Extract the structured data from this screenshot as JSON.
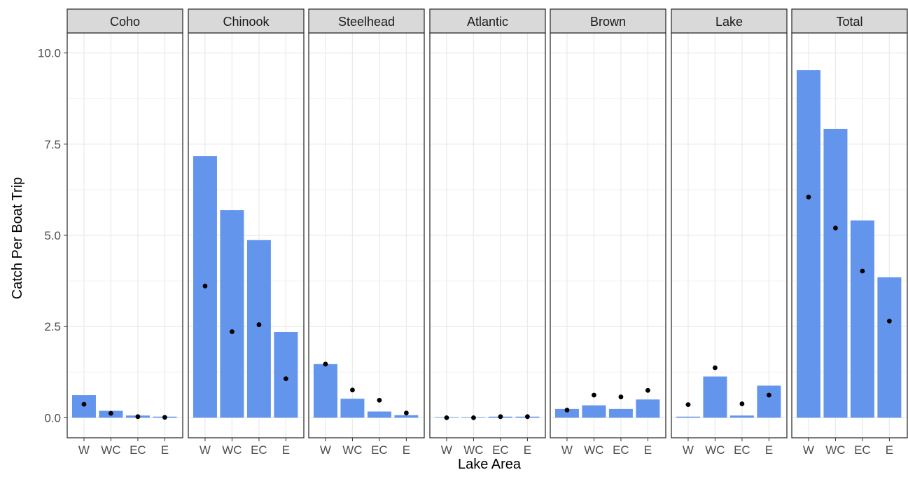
{
  "chart_data": {
    "type": "bar",
    "xlabel": "Lake Area",
    "ylabel": "Catch Per Boat Trip",
    "ylim": [
      -0.55,
      10.55
    ],
    "yticks": [
      0.0,
      2.5,
      5.0,
      7.5,
      10.0
    ],
    "ytick_labels": [
      "0.0",
      "2.5",
      "5.0",
      "7.5",
      "10.0"
    ],
    "categories": [
      "W",
      "WC",
      "EC",
      "E"
    ],
    "grid": true,
    "legend": "none",
    "bar_color": "#6495ED",
    "point_color": "#000000",
    "facets": [
      {
        "name": "Coho",
        "bars": [
          0.62,
          0.19,
          0.06,
          0.03
        ],
        "points": [
          0.37,
          0.12,
          0.03,
          0.01
        ]
      },
      {
        "name": "Chinook",
        "bars": [
          7.17,
          5.69,
          4.87,
          2.35
        ],
        "points": [
          3.61,
          2.36,
          2.55,
          1.07
        ]
      },
      {
        "name": "Steelhead",
        "bars": [
          1.47,
          0.52,
          0.17,
          0.07
        ],
        "points": [
          1.47,
          0.76,
          0.48,
          0.13
        ]
      },
      {
        "name": "Atlantic",
        "bars": [
          0.0,
          0.0,
          0.03,
          0.03
        ],
        "points": [
          0.0,
          0.0,
          0.03,
          0.03
        ]
      },
      {
        "name": "Brown",
        "bars": [
          0.24,
          0.34,
          0.24,
          0.5
        ],
        "points": [
          0.21,
          0.62,
          0.57,
          0.75
        ]
      },
      {
        "name": "Lake",
        "bars": [
          0.03,
          1.13,
          0.06,
          0.88
        ],
        "points": [
          0.36,
          1.37,
          0.38,
          0.62
        ]
      },
      {
        "name": "Total",
        "bars": [
          9.53,
          7.92,
          5.41,
          3.85
        ],
        "points": [
          6.05,
          5.2,
          4.02,
          2.65
        ]
      }
    ]
  }
}
